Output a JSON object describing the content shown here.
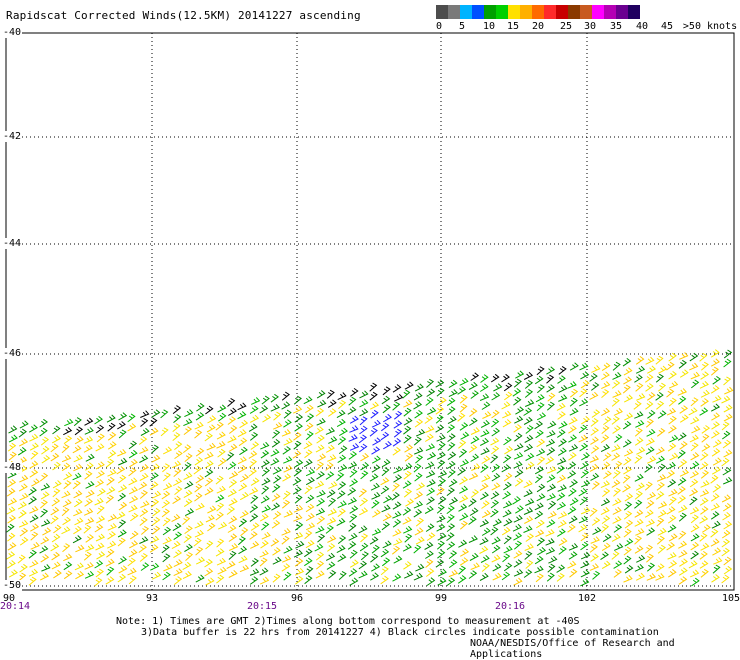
{
  "title": "Rapidscat Corrected Winds(12.5KM) 20141227 ascending",
  "legend": {
    "labels": [
      "0",
      "5",
      "10",
      "15",
      "20",
      "25",
      "30",
      "35",
      "40",
      "45",
      ">50 knots"
    ],
    "colors": [
      "#4d4d4d",
      "#7a7a7a",
      "#00b4ff",
      "#0050ff",
      "#00a000",
      "#00d000",
      "#ffe000",
      "#ffb000",
      "#ff6a00",
      "#ff2a2a",
      "#c80000",
      "#8a3a00",
      "#c85a20",
      "#ff00ff",
      "#b400b4",
      "#6a0090",
      "#200060"
    ]
  },
  "map": {
    "lat_labels": [
      "-40",
      "-42",
      "-44",
      "-46",
      "-48",
      "-50"
    ],
    "lon_labels": [
      "90",
      "93",
      "96",
      "99",
      "102",
      "105"
    ],
    "time_labels": [
      "20:14",
      "20:15",
      "20:16"
    ]
  },
  "note": {
    "line1": "Note: 1) Times are GMT 2)Times along bottom correspond to measurement at -40S",
    "line2": "3)Data buffer is 22 hrs from 20141227 4) Black circles indicate possible contamination"
  },
  "credit": "NOAA/NESDIS/Office of Research and Applications"
}
